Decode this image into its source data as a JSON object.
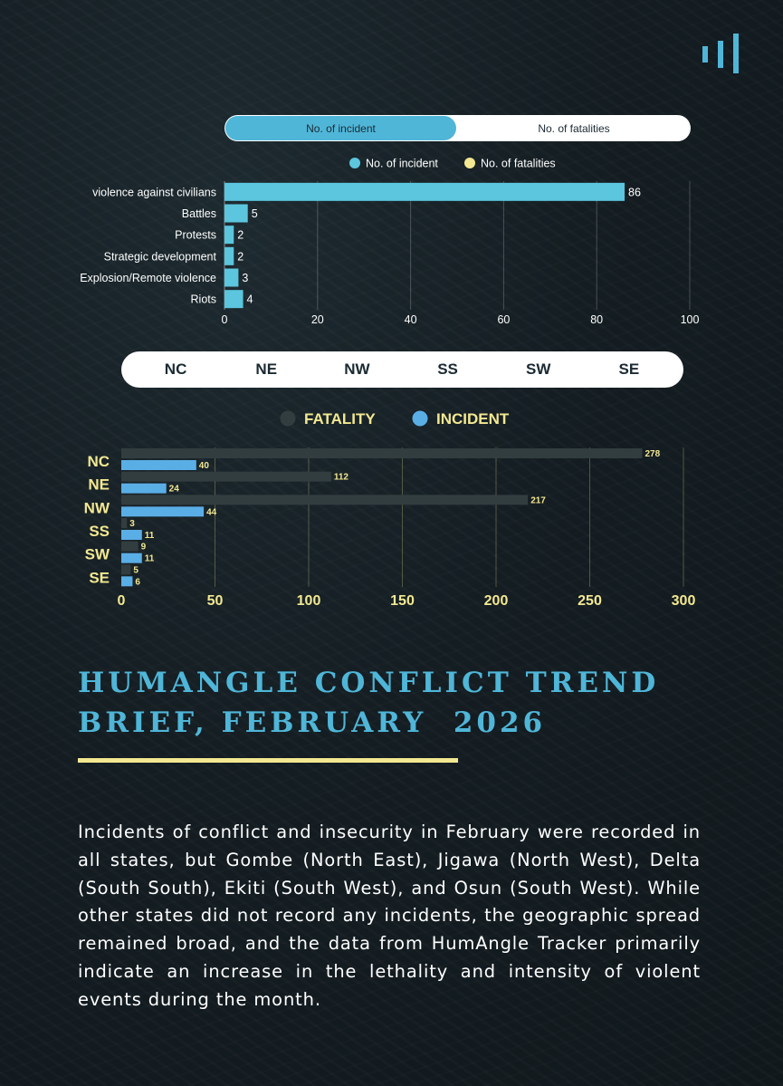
{
  "toggle": {
    "active": "No. of incident",
    "inactive": "No. of fatalities"
  },
  "region_tabs": [
    "NC",
    "NE",
    "NW",
    "SS",
    "SW",
    "SE"
  ],
  "title_lines": [
    "HUMANGLE CONFLICT TREND",
    "BRIEF, FEBRUARY  2026"
  ],
  "body": "Incidents of conflict and insecurity in February were recorded in all states, but Gombe (North East), Jigawa (North West), Delta (South South), Ekiti (South West), and Osun (South West). While other states did not record any incidents, the geographic spread remained broad, and the data from HumAngle Tracker primarily indicate an increase in the lethality and intensity of violent events during the month.",
  "colors": {
    "accent": "#4fb6d8",
    "bar_cyan": "#5bc6dd",
    "fatality": "#323d40",
    "incident_blue": "#5aaee6",
    "yellow": "#f3e891"
  },
  "chart_data": [
    {
      "type": "bar",
      "orientation": "horizontal",
      "categories": [
        "violence against civilians",
        "Battles",
        "Protests",
        "Strategic development",
        "Explosion/Remote violence",
        "Riots"
      ],
      "series": [
        {
          "name": "No. of incident",
          "values": [
            86,
            5,
            2,
            2,
            3,
            4
          ]
        }
      ],
      "legend": [
        "No. of incident",
        "No. of fatalities"
      ],
      "xlim": [
        0,
        100
      ],
      "xticks": [
        0,
        20,
        40,
        60,
        80,
        100
      ],
      "grid": true,
      "legend_position": "top-center"
    },
    {
      "type": "bar",
      "orientation": "horizontal",
      "categories": [
        "NC",
        "NE",
        "NW",
        "SS",
        "SW",
        "SE"
      ],
      "series": [
        {
          "name": "FATALITY",
          "values": [
            278,
            112,
            217,
            3,
            9,
            5
          ]
        },
        {
          "name": "INCIDENT",
          "values": [
            40,
            24,
            44,
            11,
            11,
            6
          ]
        }
      ],
      "xlim": [
        0,
        300
      ],
      "xticks": [
        0,
        50,
        100,
        150,
        200,
        250,
        300
      ],
      "grid": true,
      "legend_position": "top-center"
    }
  ]
}
